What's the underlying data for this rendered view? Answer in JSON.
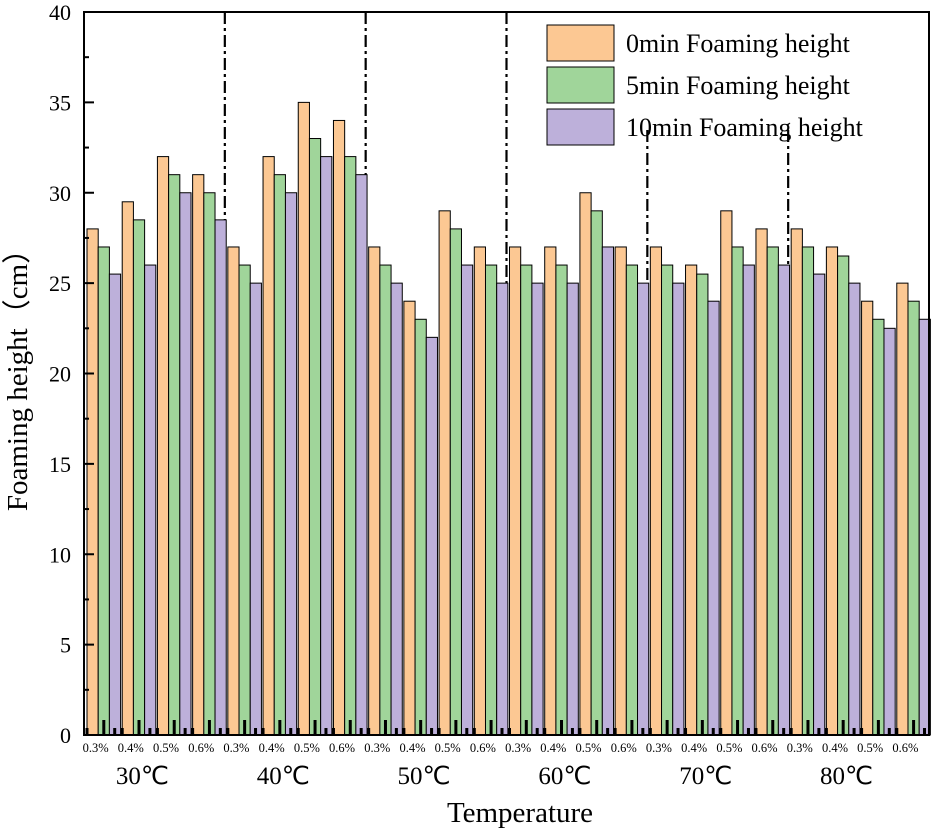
{
  "chart_data": {
    "type": "bar",
    "title": "",
    "xlabel": "Temperature",
    "ylabel": "Foaming height（cm）",
    "ylim": [
      0,
      40
    ],
    "yticks": [
      0,
      5,
      10,
      15,
      20,
      25,
      30,
      35,
      40
    ],
    "groups": [
      "30℃",
      "40℃",
      "50℃",
      "60℃",
      "70℃",
      "80℃"
    ],
    "concentrations": [
      "0.3%",
      "0.4%",
      "0.5%",
      "0.6%"
    ],
    "categories": [
      "0.3%",
      "0.4%",
      "0.5%",
      "0.6%",
      "0.3%",
      "0.4%",
      "0.5%",
      "0.6%",
      "0.3%",
      "0.4%",
      "0.5%",
      "0.6%",
      "0.3%",
      "0.4%",
      "0.5%",
      "0.6%",
      "0.3%",
      "0.4%",
      "0.5%",
      "0.6%",
      "0.3%",
      "0.4%",
      "0.5%",
      "0.6%"
    ],
    "series": [
      {
        "name": "0min Foaming height",
        "color": "#FCC893",
        "values": [
          28,
          29.5,
          32,
          31,
          27,
          32,
          35,
          34,
          27,
          24,
          29,
          27,
          27,
          27,
          30,
          27,
          27,
          26,
          29,
          28,
          28,
          27,
          24,
          25
        ]
      },
      {
        "name": "5min Foaming height",
        "color": "#A0D59A",
        "values": [
          27,
          28.5,
          31,
          30,
          26,
          31,
          33,
          32,
          26,
          23,
          28,
          26,
          26,
          26,
          29,
          26,
          26,
          25.5,
          27,
          27,
          27,
          26.5,
          23,
          24
        ]
      },
      {
        "name": "10min Foaming height",
        "color": "#BDB0DA",
        "values": [
          25.5,
          26,
          30,
          28.5,
          25,
          30,
          32,
          31,
          25,
          22,
          26,
          25,
          25,
          25,
          27,
          25,
          25,
          24,
          26,
          26,
          25.5,
          25,
          22.5,
          23
        ]
      }
    ],
    "legend_position": "top-right",
    "separators": "dash-dot lines between temperature groups"
  }
}
